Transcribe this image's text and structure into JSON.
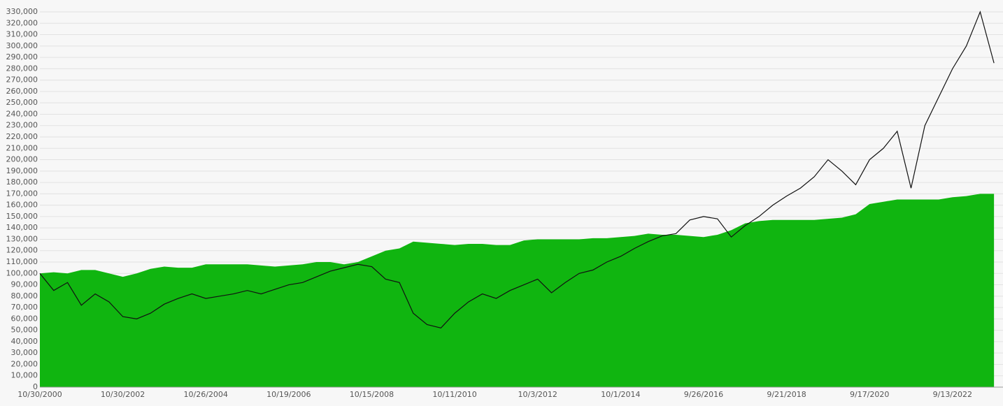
{
  "chart_data": {
    "type": "line",
    "categories": [
      "10/30/2000",
      null,
      null,
      null,
      null,
      null,
      "10/30/2002",
      null,
      null,
      null,
      null,
      null,
      "10/26/2004",
      null,
      null,
      null,
      null,
      null,
      "10/19/2006",
      null,
      null,
      null,
      null,
      null,
      "10/15/2008",
      null,
      null,
      null,
      null,
      null,
      "10/11/2010",
      null,
      null,
      null,
      null,
      null,
      "10/3/2012",
      null,
      null,
      null,
      null,
      null,
      "10/1/2014",
      null,
      null,
      null,
      null,
      null,
      "9/26/2016",
      null,
      null,
      null,
      null,
      null,
      "9/21/2018",
      null,
      null,
      null,
      null,
      null,
      "9/17/2020",
      null,
      null,
      null,
      null,
      null,
      "9/13/2022",
      null,
      null,
      null
    ],
    "series": [
      {
        "kind": "area",
        "color": "#10b510",
        "values": [
          100,
          101,
          100,
          103,
          103,
          100,
          97,
          100,
          104,
          106,
          105,
          105,
          108,
          108,
          108,
          108,
          107,
          106,
          107,
          108,
          110,
          110,
          108,
          110,
          115,
          120,
          122,
          128,
          127,
          126,
          125,
          126,
          126,
          125,
          125,
          129,
          130,
          130,
          130,
          130,
          131,
          131,
          132,
          133,
          135,
          134,
          134,
          133,
          132,
          134,
          138,
          144,
          146,
          147,
          147,
          147,
          147,
          148,
          149,
          152,
          161,
          163,
          165,
          165,
          165,
          165,
          167,
          168,
          170,
          170
        ]
      },
      {
        "kind": "line",
        "color": "#111111",
        "values": [
          100,
          85,
          92,
          72,
          82,
          75,
          62,
          60,
          65,
          73,
          78,
          82,
          78,
          80,
          82,
          85,
          82,
          86,
          90,
          92,
          97,
          102,
          105,
          108,
          106,
          95,
          92,
          65,
          55,
          52,
          65,
          75,
          82,
          78,
          85,
          90,
          95,
          83,
          92,
          100,
          103,
          110,
          115,
          122,
          128,
          133,
          135,
          147,
          150,
          148,
          132,
          142,
          150,
          160,
          168,
          175,
          185,
          200,
          190,
          178,
          200,
          210,
          225,
          175,
          230,
          255,
          280,
          300,
          330,
          285
        ]
      }
    ],
    "ylim": [
      0,
      330000
    ],
    "yticks": [
      0,
      {
        "value": 10000,
        "label": "10,000"
      },
      {
        "value": 20000,
        "label": "20,000"
      },
      {
        "value": 30000,
        "label": "30,000"
      },
      {
        "value": 40000,
        "label": "40,000"
      },
      {
        "value": 50000,
        "label": "50,000"
      },
      {
        "value": 60000,
        "label": "60,000"
      },
      {
        "value": 70000,
        "label": "70,000"
      },
      {
        "value": 80000,
        "label": "80,000"
      },
      {
        "value": 90000,
        "label": "90,000"
      },
      {
        "value": 100000,
        "label": "100,000"
      },
      {
        "value": 110000,
        "label": "110,000"
      },
      {
        "value": 120000,
        "label": "120,000"
      },
      {
        "value": 130000,
        "label": "130,000"
      },
      {
        "value": 140000,
        "label": "140,000"
      },
      {
        "value": 150000,
        "label": "150,000"
      },
      {
        "value": 160000,
        "label": "160,000"
      },
      {
        "value": 170000,
        "label": "170,000"
      },
      {
        "value": 180000,
        "label": "180,000"
      },
      {
        "value": 190000,
        "label": "190,000"
      },
      {
        "value": 200000,
        "label": "200,000"
      },
      {
        "value": 210000,
        "label": "210,000"
      },
      {
        "value": 220000,
        "label": "220,000"
      },
      {
        "value": 230000,
        "label": "230,000"
      },
      {
        "value": 240000,
        "label": "240,000"
      },
      {
        "value": 250000,
        "label": "250,000"
      },
      {
        "value": 260000,
        "label": "260,000"
      },
      {
        "value": 270000,
        "label": "270,000"
      },
      {
        "value": 280000,
        "label": "280,000"
      },
      {
        "value": 290000,
        "label": "290,000"
      },
      {
        "value": 300000,
        "label": "300,000"
      },
      {
        "value": 310000,
        "label": "310,000"
      },
      {
        "value": 320000,
        "label": "320,000"
      },
      {
        "value": 330000,
        "label": "330,000"
      }
    ],
    "value_scale": 1000,
    "grid": true
  }
}
